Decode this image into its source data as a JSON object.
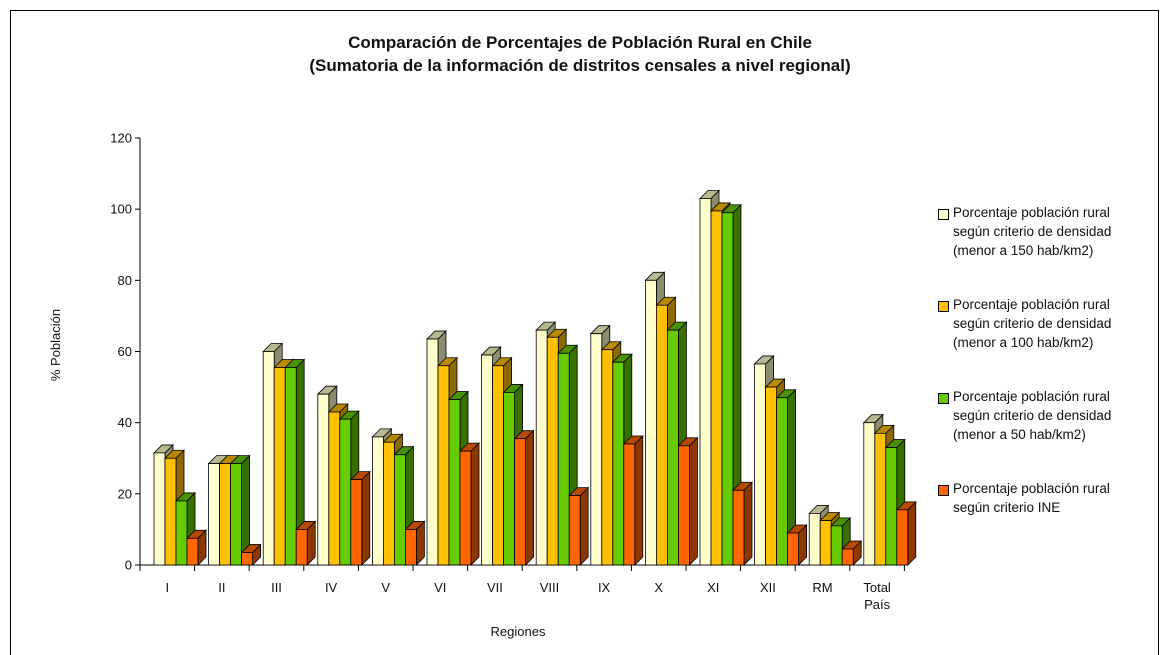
{
  "chart_data": {
    "type": "bar",
    "title": "Comparación de Porcentajes de Población Rural en Chile",
    "subtitle": "(Sumatoria de la información de distritos censales a nivel regional)",
    "xlabel": "Regiones",
    "ylabel": "% Población",
    "ylim": [
      0,
      120
    ],
    "yticks": [
      "0",
      "20",
      "40",
      "60",
      "80",
      "100",
      "120"
    ],
    "categories": [
      "I",
      "II",
      "III",
      "IV",
      "V",
      "VI",
      "VII",
      "VIII",
      "IX",
      "X",
      "XI",
      "XII",
      "RM",
      "Total País"
    ],
    "series": [
      {
        "name": "Porcentaje población rural según criterio de densidad (menor a 150 hab/km2)",
        "color": "#FFFFCC",
        "values": [
          31.5,
          28.5,
          60,
          48,
          36,
          63.5,
          59,
          66,
          65,
          80,
          103,
          56.5,
          14.5,
          40
        ]
      },
      {
        "name": "Porcentaje población rural según criterio de densidad (menor a 100 hab/km2)",
        "color": "#FFC000",
        "values": [
          30,
          28.5,
          55.5,
          43,
          34.5,
          56,
          56,
          64,
          60.5,
          73,
          99.5,
          50,
          12.5,
          37
        ]
      },
      {
        "name": "Porcentaje población rural según criterio de densidad (menor a 50 hab/km2)",
        "color": "#66CC00",
        "values": [
          18,
          28.5,
          55.5,
          41,
          31,
          46.5,
          48.5,
          59.5,
          57,
          66,
          99,
          47,
          11,
          33
        ]
      },
      {
        "name": "Porcentaje población rural según criterio INE",
        "color": "#FF6600",
        "values": [
          7.5,
          3.5,
          10,
          24,
          10,
          32,
          35.5,
          19.5,
          34,
          33.5,
          21,
          9,
          4.5,
          15.5
        ]
      }
    ],
    "legend": {
      "placement": "right",
      "lines": [
        [
          "Porcentaje población rural",
          "según criterio de densidad",
          "(menor a 150 hab/km2)"
        ],
        [
          "Porcentaje población rural",
          "según criterio de densidad",
          "(menor a 100 hab/km2)"
        ],
        [
          "Porcentaje población rural",
          "según criterio de densidad",
          "(menor a 50 hab/km2)"
        ],
        [
          "Porcentaje población rural",
          "según criterio INE"
        ]
      ]
    },
    "grid": false,
    "style": "3d-clustered-column"
  }
}
